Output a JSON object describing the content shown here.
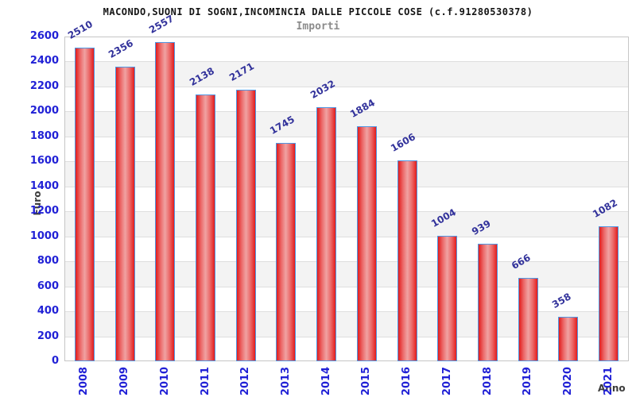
{
  "chart_data": {
    "type": "bar",
    "title": "MACONDO,SUONI DI SOGNI,INCOMINCIA DALLE PICCOLE COSE (c.f.91280530378)",
    "subtitle": "Importi",
    "xlabel": "Anno",
    "ylabel": "Euro",
    "categories": [
      "2008",
      "2009",
      "2010",
      "2011",
      "2012",
      "2013",
      "2014",
      "2015",
      "2016",
      "2017",
      "2018",
      "2019",
      "2020",
      "2021"
    ],
    "values": [
      2510,
      2356,
      2557,
      2138,
      2171,
      1745,
      2032,
      1884,
      1606,
      1004,
      939,
      666,
      358,
      1082
    ],
    "ylim": [
      0,
      2600
    ],
    "ytick_step": 200,
    "grid": true,
    "legend": false,
    "colors": {
      "bar_edge": "#e21c1c",
      "bar_mid": "#ec6a6a",
      "bar_center": "#f0a2a2",
      "bar_border": "#4f97e3",
      "tick_label": "#2121d6",
      "data_label": "#32329b",
      "axis_title": "#3b3b3b",
      "title": "#141414",
      "subtitle": "#8c8c8c",
      "band": "#f3f3f3",
      "gridline": "#dedede",
      "plot_border": "#c6c6c6"
    }
  }
}
